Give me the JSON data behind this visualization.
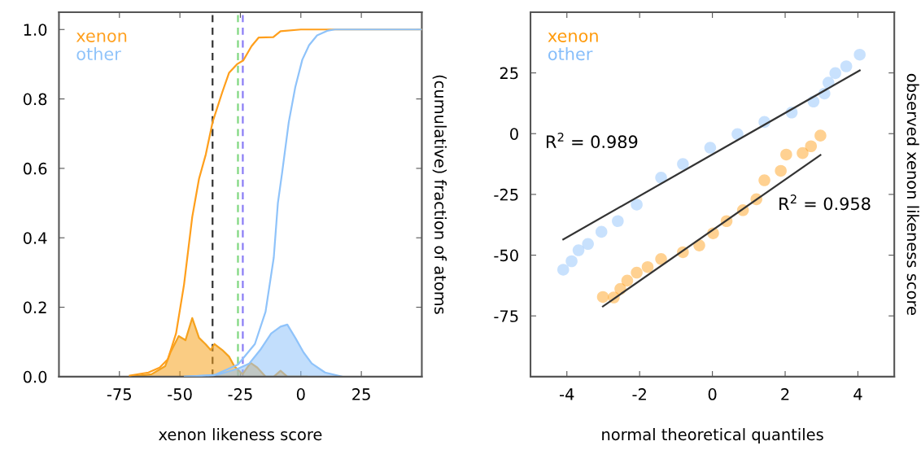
{
  "chart_data": [
    {
      "type": "line",
      "xlabel": "xenon likeness score",
      "ylabel": "(cumulative) fraction of atoms",
      "xlim": [
        -100,
        50
      ],
      "ylim": [
        0,
        1.05
      ],
      "xticks": [
        -75,
        -50,
        -25,
        0,
        25
      ],
      "yticks": [
        {
          "value": 0,
          "label": "0.0"
        },
        {
          "value": 0.2,
          "label": "0.2"
        },
        {
          "value": 0.4,
          "label": "0.4"
        },
        {
          "value": 0.6,
          "label": "0.6"
        },
        {
          "value": 0.8,
          "label": "0.8"
        },
        {
          "value": 1.0,
          "label": "1.0"
        }
      ],
      "grid": false,
      "legend": "top left",
      "line_style": "solid",
      "series": [
        {
          "name": "xenon",
          "color": "#ff9f1c",
          "x": [
            -70.7,
            -63,
            -58.4,
            -55,
            -51.6,
            -48.3,
            -44.9,
            -42.1,
            -39.3,
            -36.5,
            -32.5,
            -29.7,
            -26.4,
            -23.8,
            -20.4,
            -17.4,
            -11.4,
            -8.4,
            0,
            50
          ],
          "values": [
            0.003,
            0.012,
            0.026,
            0.05,
            0.124,
            0.265,
            0.46,
            0.57,
            0.64,
            0.733,
            0.819,
            0.875,
            0.9,
            0.911,
            0.952,
            0.977,
            0.978,
            0.995,
            1.0,
            1.0
          ]
        },
        {
          "name": "other",
          "color": "#8fc3fa",
          "x": [
            -48,
            -36,
            -26,
            -19,
            -14.6,
            -11.2,
            -9.5,
            -7.8,
            -5,
            -2.3,
            0.6,
            3.4,
            6.7,
            11.2,
            14,
            50
          ],
          "values": [
            0,
            0.004,
            0.035,
            0.094,
            0.187,
            0.343,
            0.5,
            0.585,
            0.733,
            0.834,
            0.913,
            0.955,
            0.983,
            0.997,
            1.0,
            1.0
          ]
        },
        {
          "type": "area",
          "color": "#f5a21e",
          "x": [
            -70.7,
            -61.7,
            -56.1,
            -53.9,
            -50.5,
            -47.7,
            -44.9,
            -42.1,
            -39.3,
            -37.3,
            -35.7,
            -32.5,
            -29.7,
            -27.5,
            -24.1,
            -20.8,
            -18,
            -14.6,
            -11.2,
            -8.4,
            -5.6,
            2.4
          ],
          "values": [
            0,
            0.007,
            0.03,
            0.07,
            0.117,
            0.105,
            0.169,
            0.112,
            0.093,
            0.077,
            0.094,
            0.077,
            0.058,
            0.03,
            0.007,
            0.04,
            0.026,
            0,
            0,
            0.017,
            0,
            0
          ]
        },
        {
          "type": "area",
          "color": "#8fc3fa",
          "x": [
            -48,
            -34.8,
            -26,
            -21.3,
            -16.8,
            -12.3,
            -8.4,
            -5.6,
            -2.3,
            1.1,
            4.5,
            10,
            17
          ],
          "values": [
            0,
            0.005,
            0.023,
            0.038,
            0.077,
            0.124,
            0.144,
            0.15,
            0.112,
            0.07,
            0.038,
            0.012,
            0
          ]
        }
      ],
      "ref_lines": [
        {
          "axis": "x",
          "value": -36.5,
          "color": "#333333",
          "line_style": "dashed"
        },
        {
          "axis": "x",
          "value": -26,
          "color": "#7fd77f",
          "line_style": "dashed"
        },
        {
          "axis": "x",
          "value": -24,
          "color": "#8a7cf5",
          "line_style": "dashed"
        }
      ]
    },
    {
      "type": "scatter",
      "xlabel": "normal theoretical quantiles",
      "ylabel": "observed xenon likeness score",
      "xlim": [
        -5,
        5
      ],
      "ylim": [
        -100,
        50
      ],
      "xticks": [
        -4,
        -2,
        0,
        2,
        4
      ],
      "yticks": [
        -75,
        -50,
        -25,
        0,
        25
      ],
      "grid": false,
      "legend": "top left",
      "series": [
        {
          "name": "xenon",
          "marker": "circle",
          "color": "#ff9a0a",
          "x": [
            -3.01,
            -2.71,
            -2.53,
            -2.34,
            -2.08,
            -1.78,
            -1.41,
            -0.81,
            -0.36,
            0.02,
            0.39,
            0.84,
            1.21,
            1.43,
            1.88,
            2.03,
            2.48,
            2.71,
            2.97
          ],
          "values": [
            -67.2,
            -67.4,
            -63.9,
            -60.5,
            -57.2,
            -54.9,
            -51.6,
            -48.8,
            -46,
            -41,
            -36,
            -31.5,
            -27,
            -19.2,
            -15.3,
            -8.6,
            -8,
            -5.2,
            -0.8
          ]
        },
        {
          "name": "other",
          "marker": "circle",
          "color": "#85bdfa",
          "x": [
            -4.1,
            -3.87,
            -3.68,
            -3.42,
            -3.05,
            -2.6,
            -2.08,
            -1.41,
            -0.81,
            -0.06,
            0.69,
            1.43,
            2.18,
            2.78,
            3.08,
            3.19,
            3.38,
            3.68,
            4.05
          ],
          "values": [
            -56,
            -52.5,
            -48,
            -45.4,
            -40.4,
            -36,
            -29.2,
            -18.1,
            -12.5,
            -5.8,
            -0.2,
            4.8,
            8.7,
            13.2,
            16.5,
            21,
            24.9,
            27.7,
            32.5
          ]
        },
        {
          "type": "line",
          "color": "#333333",
          "x": [
            -4.1,
            4.05
          ],
          "values": [
            -43.5,
            26
          ]
        },
        {
          "type": "line",
          "color": "#333333",
          "x": [
            -3.01,
            2.97
          ],
          "values": [
            -71.1,
            -8.8
          ]
        }
      ],
      "annotations": [
        "R$^{2}$ = 0.989",
        "R$^{2}$ = 0.958"
      ]
    }
  ]
}
